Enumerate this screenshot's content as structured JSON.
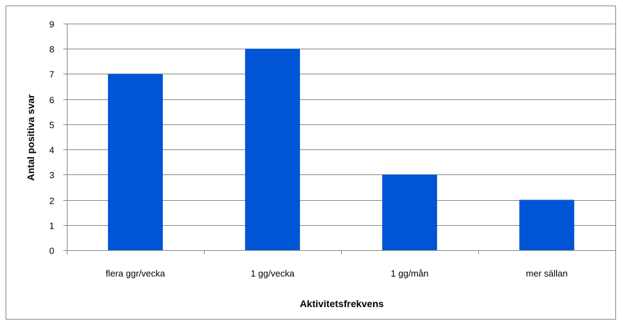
{
  "chart_data": {
    "type": "bar",
    "categories": [
      "flera ggr/vecka",
      "1 gg/vecka",
      "1 gg/mån",
      "mer sällan"
    ],
    "values": [
      7,
      8,
      3,
      2
    ],
    "title": "",
    "xlabel": "Aktivitetsfrekvens",
    "ylabel": "Antal positiva svar",
    "ylim": [
      0,
      9
    ],
    "yticks": [
      0,
      1,
      2,
      3,
      4,
      5,
      6,
      7,
      8,
      9
    ],
    "grid": true,
    "legend": "none",
    "bar_color": "#0055D4"
  }
}
